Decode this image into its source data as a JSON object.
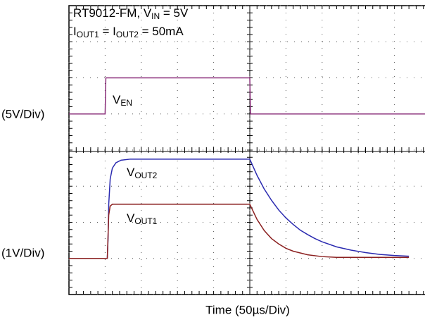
{
  "chart_data": {
    "type": "line",
    "title": [
      "RT9012-FM, V",
      "IN",
      " = 5V"
    ],
    "subtitle": [
      "I",
      "OUT1",
      " = I",
      "OUT2",
      " = 50mA"
    ],
    "x_label": "Time  (50µs/Div)",
    "y_label": "(5V/Div)",
    "y2_label": "(1V/Div)",
    "xlim": [
      0,
      500
    ],
    "xticks": [
      0,
      50,
      100,
      150,
      200,
      250,
      300,
      350,
      400,
      450,
      500
    ],
    "ylim": [
      -25,
      15
    ],
    "yticks": [
      -25,
      -20,
      -15,
      -10,
      -5,
      0,
      5,
      10,
      15
    ],
    "y2lim": [
      -1,
      7
    ],
    "grid": true,
    "series": [
      {
        "name": "V",
        "subscript": "EN",
        "color": "#8a2f7a",
        "axis": "y",
        "x": [
          0,
          50,
          51,
          250,
          251,
          500
        ],
        "values": [
          0,
          0,
          5,
          5,
          0,
          0
        ]
      },
      {
        "name": "V",
        "subscript": "OUT2",
        "color": "#2a2ab0",
        "axis": "y2",
        "x": [
          0,
          53,
          54,
          55,
          57,
          60,
          65,
          72,
          85,
          250,
          260,
          270,
          280,
          290,
          300,
          310,
          320,
          330,
          340,
          350,
          370,
          390,
          410,
          430,
          450,
          470
        ],
        "values": [
          0,
          0,
          0.5,
          1.5,
          2.2,
          2.5,
          2.65,
          2.72,
          2.75,
          2.75,
          2.3,
          1.92,
          1.61,
          1.34,
          1.12,
          0.94,
          0.78,
          0.66,
          0.55,
          0.46,
          0.32,
          0.23,
          0.16,
          0.11,
          0.08,
          0.06
        ]
      },
      {
        "name": "V",
        "subscript": "OUT1",
        "color": "#8b2020",
        "axis": "y2",
        "x": [
          0,
          53,
          54,
          55,
          57,
          60,
          250,
          260,
          270,
          280,
          290,
          300,
          310,
          330,
          350,
          370,
          470
        ],
        "values": [
          0,
          0,
          0.6,
          1.2,
          1.45,
          1.5,
          1.5,
          1.08,
          0.77,
          0.55,
          0.4,
          0.28,
          0.2,
          0.1,
          0.05,
          0.03,
          0.03
        ]
      }
    ]
  }
}
